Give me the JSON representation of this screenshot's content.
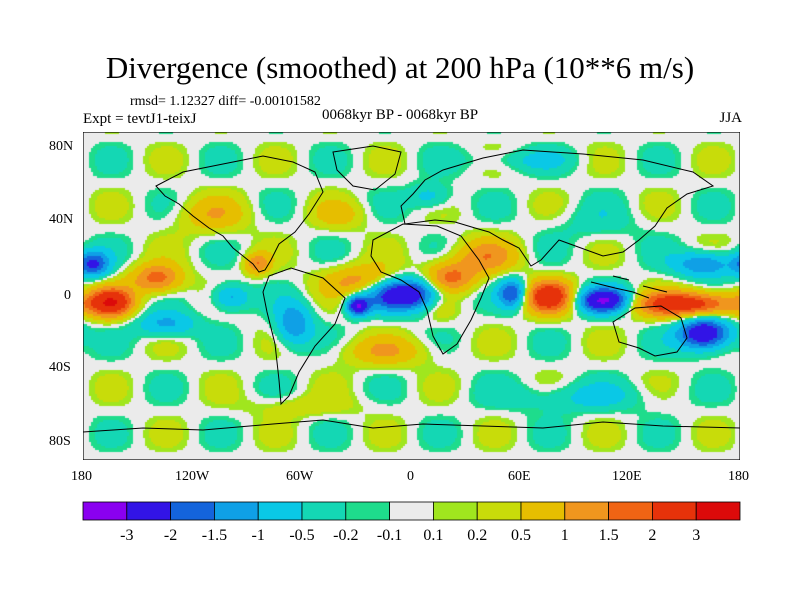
{
  "title": "Divergence (smoothed) at 200 hPa (10**6 m/s)",
  "stats": "rmsd= 1.12327 diff= -0.00101582",
  "experiment": "Expt = tevtJ1-teixJ",
  "period": "0068kyr BP - 0068kyr BP",
  "season": "JJA",
  "chart_data": {
    "type": "heatmap",
    "projection": "cylindrical-equidistant",
    "lon_range": [
      -180,
      180
    ],
    "lat_range": [
      -90,
      90
    ],
    "x_ticks": [
      {
        "lon": -180,
        "label": "180"
      },
      {
        "lon": -120,
        "label": "120W"
      },
      {
        "lon": -60,
        "label": "60W"
      },
      {
        "lon": 0,
        "label": "0"
      },
      {
        "lon": 60,
        "label": "60E"
      },
      {
        "lon": 120,
        "label": "120E"
      },
      {
        "lon": 180,
        "label": "180"
      }
    ],
    "y_ticks": [
      {
        "lat": 80,
        "label": "80N"
      },
      {
        "lat": 40,
        "label": "40N"
      },
      {
        "lat": 0,
        "label": "0"
      },
      {
        "lat": -40,
        "label": "40S"
      },
      {
        "lat": -80,
        "label": "80S"
      }
    ],
    "levels": [
      "-3",
      "-2",
      "-1.5",
      "-1",
      "-0.5",
      "-0.2",
      "-0.1",
      "0.1",
      "0.2",
      "0.5",
      "1",
      "1.5",
      "2",
      "3"
    ],
    "colors": [
      "#8a00f0",
      "#3214e6",
      "#1464dc",
      "#0fa0e6",
      "#0ac8e6",
      "#14d7b4",
      "#1edc8c",
      "#ebebeb",
      "#a0e61e",
      "#c8dc0a",
      "#e6be00",
      "#f0961e",
      "#f06414",
      "#e6320a",
      "#dc0a0a"
    ],
    "features": [
      {
        "name": "west-africa-convergence",
        "lon": -5,
        "lat": 2,
        "rx": 22,
        "ry": 9,
        "v": -3.2
      },
      {
        "name": "atlantic-orange",
        "lon": -25,
        "lat": 8,
        "rx": 22,
        "ry": 9,
        "v": 1.6
      },
      {
        "name": "central-africa-red",
        "lon": 20,
        "lat": 10,
        "rx": 14,
        "ry": 9,
        "v": 1.8
      },
      {
        "name": "arabia-orange",
        "lon": 40,
        "lat": 22,
        "rx": 18,
        "ry": 10,
        "v": 1.2
      },
      {
        "name": "indian-ocean-red",
        "lon": 75,
        "lat": 0,
        "rx": 14,
        "ry": 9,
        "v": 2.6
      },
      {
        "name": "indian-blue",
        "lon": 55,
        "lat": 2,
        "rx": 8,
        "ry": 8,
        "v": -2.1
      },
      {
        "name": "indonesia-purple",
        "lon": 105,
        "lat": -2,
        "rx": 15,
        "ry": 7,
        "v": -3.1
      },
      {
        "name": "west-pacific-red",
        "lon": 150,
        "lat": -4,
        "rx": 30,
        "ry": 7,
        "v": 2.7
      },
      {
        "name": "sw-pacific-purple",
        "lon": 160,
        "lat": -20,
        "rx": 14,
        "ry": 9,
        "v": -3.0
      },
      {
        "name": "nw-pacific-blue",
        "lon": 160,
        "lat": 18,
        "rx": 16,
        "ry": 7,
        "v": -1.6
      },
      {
        "name": "east-pacific-red",
        "lon": -165,
        "lat": -3,
        "rx": 12,
        "ry": 8,
        "v": 2.6
      },
      {
        "name": "central-pacific-orange",
        "lon": -140,
        "lat": 10,
        "rx": 14,
        "ry": 8,
        "v": 1.8
      },
      {
        "name": "north-pacific-blue",
        "lon": -175,
        "lat": 18,
        "rx": 9,
        "ry": 7,
        "v": -2.0
      },
      {
        "name": "south-pacific-blue",
        "lon": -135,
        "lat": -15,
        "rx": 16,
        "ry": 7,
        "v": -1.2
      },
      {
        "name": "east-pacific-blue",
        "lon": -100,
        "lat": 0,
        "rx": 10,
        "ry": 7,
        "v": -1.3
      },
      {
        "name": "central-america-orange",
        "lon": -85,
        "lat": 18,
        "rx": 7,
        "ry": 6,
        "v": 1.4
      },
      {
        "name": "south-america-blue",
        "lon": -65,
        "lat": -15,
        "rx": 10,
        "ry": 12,
        "v": -1.5
      },
      {
        "name": "atlantic-purple",
        "lon": -30,
        "lat": -5,
        "rx": 6,
        "ry": 5,
        "v": -2.8
      },
      {
        "name": "south-atlantic-orange",
        "lon": -15,
        "lat": -30,
        "rx": 25,
        "ry": 8,
        "v": 0.9
      },
      {
        "name": "north-atlantic-yellow",
        "lon": -40,
        "lat": 45,
        "rx": 15,
        "ry": 8,
        "v": 0.6
      },
      {
        "name": "europe-blue",
        "lon": 10,
        "lat": 55,
        "rx": 12,
        "ry": 7,
        "v": -0.8
      },
      {
        "name": "asia-teal",
        "lon": 100,
        "lat": 40,
        "rx": 25,
        "ry": 10,
        "v": -0.3
      },
      {
        "name": "africa-green",
        "lon": 15,
        "lat": -5,
        "rx": 10,
        "ry": 9,
        "v": 0.5
      },
      {
        "name": "southern-ocean-blue",
        "lon": 90,
        "lat": -55,
        "rx": 40,
        "ry": 8,
        "v": -0.6
      },
      {
        "name": "southern-ocean-green",
        "lon": -60,
        "lat": -60,
        "rx": 30,
        "ry": 6,
        "v": 0.4
      },
      {
        "name": "north-america-yellow",
        "lon": -110,
        "lat": 45,
        "rx": 20,
        "ry": 10,
        "v": 0.8
      },
      {
        "name": "arctic-blue",
        "lon": 60,
        "lat": 75,
        "rx": 30,
        "ry": 6,
        "v": -0.5
      }
    ]
  }
}
